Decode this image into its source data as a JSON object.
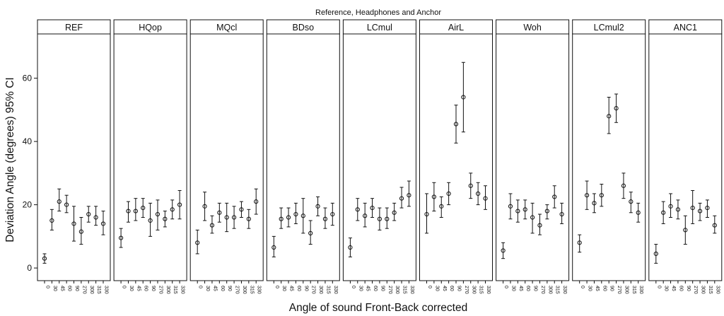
{
  "chart_data": {
    "type": "scatter",
    "title": "Reference, Headphones and Anchor",
    "xlabel": "Angle of sound Front-Back corrected",
    "ylabel": "Deviation Angle (degrees) 95% CI",
    "ylim": [
      -4,
      74
    ],
    "yticks": [
      0,
      20,
      40,
      60
    ],
    "x": [
      "0",
      "30",
      "45",
      "60",
      "90",
      "270",
      "300",
      "315",
      "330"
    ],
    "grid": false,
    "panels": [
      {
        "name": "REF",
        "mean": [
          3,
          15,
          21,
          20,
          14,
          11.5,
          17,
          16,
          14
        ],
        "lower": [
          1.5,
          12,
          18,
          17.5,
          8.5,
          7.5,
          14.5,
          13.5,
          10.5
        ],
        "upper": [
          4.5,
          18.5,
          25,
          23,
          19.5,
          16,
          19.5,
          19.5,
          18
        ]
      },
      {
        "name": "HQop",
        "mean": [
          9.5,
          18,
          18,
          19,
          15,
          17,
          15.5,
          18.5,
          20
        ],
        "lower": [
          6.5,
          14.5,
          15,
          16,
          10,
          12,
          13,
          15.5,
          15.5
        ],
        "upper": [
          12.5,
          21,
          22,
          22,
          20.5,
          21.5,
          18,
          21.5,
          24.5
        ]
      },
      {
        "name": "MQcl",
        "mean": [
          8,
          19.5,
          13.5,
          17.5,
          16,
          16,
          18.5,
          15.5,
          21
        ],
        "lower": [
          4.5,
          15,
          11,
          14.5,
          11.5,
          12.5,
          16,
          12.5,
          17
        ],
        "upper": [
          12,
          24,
          16.5,
          20.5,
          20.5,
          19.5,
          21,
          18.5,
          25
        ]
      },
      {
        "name": "BDso",
        "mean": [
          6.5,
          15.5,
          16,
          17,
          16.5,
          11,
          19.5,
          15.5,
          17
        ],
        "lower": [
          3.5,
          12.5,
          13,
          14,
          11,
          7.5,
          16.5,
          12.5,
          13.5
        ],
        "upper": [
          10,
          19,
          19,
          20.5,
          22,
          15,
          22.5,
          19,
          20.5
        ]
      },
      {
        "name": "LCmul",
        "mean": [
          6.5,
          18.5,
          16.5,
          19,
          15.5,
          15.5,
          17.5,
          22,
          23
        ],
        "lower": [
          3.5,
          15,
          13,
          16,
          12,
          12.5,
          15,
          19,
          19.5
        ],
        "upper": [
          9.5,
          22,
          20.5,
          22,
          19,
          19,
          20.5,
          25.5,
          27.5
        ]
      },
      {
        "name": "AirL",
        "mean": [
          17,
          22.5,
          19.5,
          23.5,
          45.5,
          54,
          26,
          23.5,
          22
        ],
        "lower": [
          11,
          18,
          16,
          20,
          39.5,
          43,
          22,
          20,
          18.5
        ],
        "upper": [
          23.5,
          27,
          22.5,
          27,
          51.5,
          65,
          30,
          27,
          26
        ]
      },
      {
        "name": "Woh",
        "mean": [
          5.5,
          19.5,
          18,
          18.5,
          16,
          13.5,
          18,
          22.5,
          17
        ],
        "lower": [
          3,
          15.5,
          14.5,
          15.5,
          11,
          10.5,
          15.5,
          19,
          14
        ],
        "upper": [
          8,
          23.5,
          21.5,
          21.5,
          20.5,
          17,
          20,
          26,
          20.5
        ]
      },
      {
        "name": "LCmul2",
        "mean": [
          8,
          23,
          20.5,
          23,
          48,
          50.5,
          26,
          21,
          17.5
        ],
        "lower": [
          5,
          18.5,
          17.5,
          19.5,
          42.5,
          46,
          22,
          17.5,
          14.5
        ],
        "upper": [
          10.5,
          27.5,
          23.5,
          26.5,
          54,
          55,
          30,
          24,
          20.5
        ]
      },
      {
        "name": "ANC1",
        "mean": [
          4.5,
          17.5,
          19.5,
          18.5,
          12,
          19,
          18,
          19,
          13.5
        ],
        "lower": [
          1.5,
          14,
          16,
          15.5,
          7.5,
          14,
          15,
          16,
          11
        ],
        "upper": [
          7.5,
          21,
          23.5,
          21.5,
          16.5,
          24.5,
          20.5,
          21.5,
          16.5
        ]
      }
    ]
  }
}
